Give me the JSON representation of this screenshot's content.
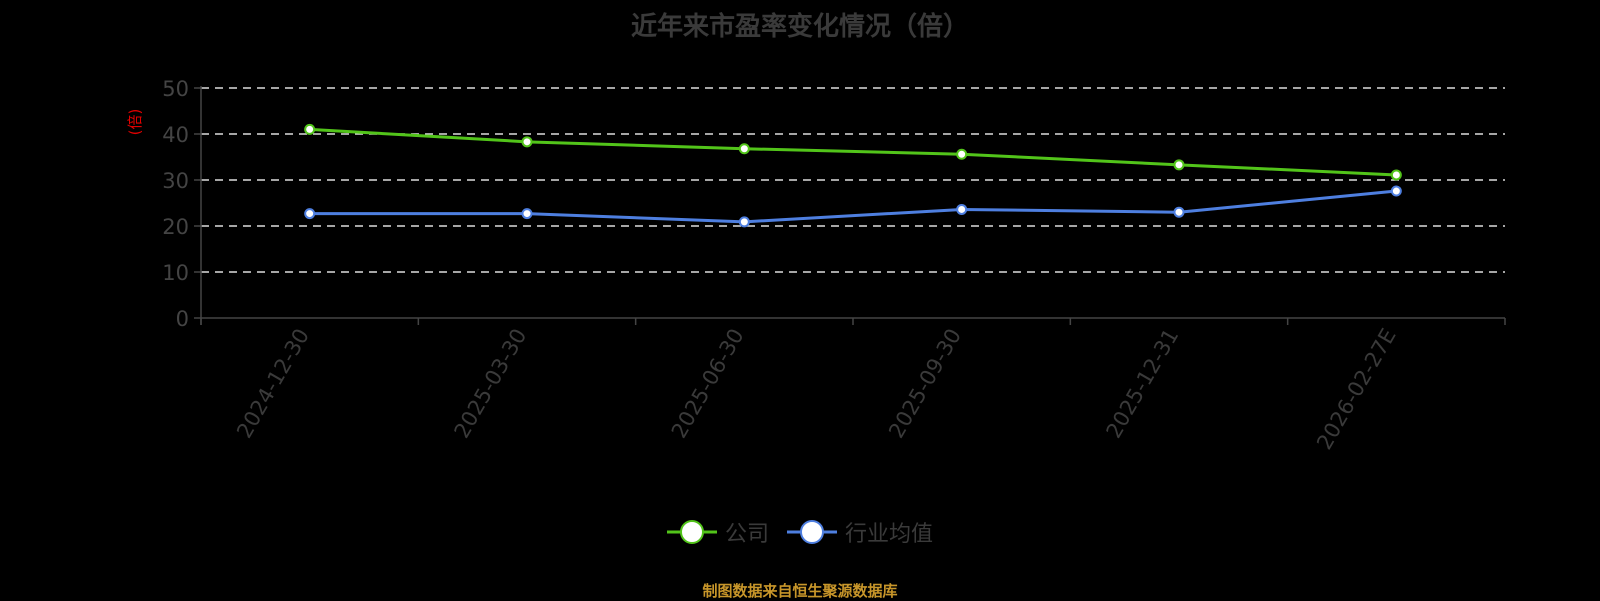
{
  "title": "近年来市盈率变化情况（倍）",
  "footer": "制图数据来自恒生聚源数据库",
  "legend": [
    {
      "name": "公司",
      "color": "#52c41a"
    },
    {
      "name": "行业均值",
      "color": "#4e7fe0"
    }
  ],
  "chart_data": {
    "type": "line",
    "title": "近年来市盈率变化情况（倍）",
    "xlabel": "",
    "ylabel": "(倍)",
    "categories": [
      "2024-12-30",
      "2025-03-30",
      "2025-06-30",
      "2025-09-30",
      "2025-12-31",
      "2026-02-27E"
    ],
    "series": [
      {
        "name": "公司",
        "color": "#52c41a",
        "values": [
          41.0,
          38.3,
          36.8,
          35.6,
          33.3,
          31.1
        ]
      },
      {
        "name": "行业均值",
        "color": "#4e7fe0",
        "values": [
          22.7,
          22.7,
          20.9,
          23.6,
          23.0,
          27.6
        ]
      }
    ],
    "yticks": [
      0,
      10,
      20,
      30,
      40,
      50
    ],
    "ylim": [
      0,
      50
    ],
    "grid": true,
    "grid_style": "dashed",
    "legend_position": "bottom"
  }
}
